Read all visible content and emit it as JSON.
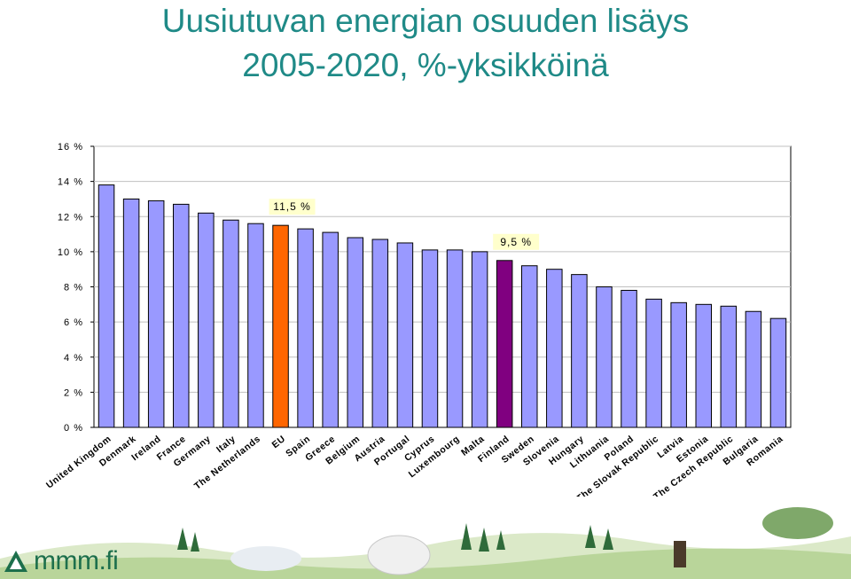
{
  "header": {
    "title_line1": "Uusiutuvan energian osuuden lisäys",
    "title_line2": "2005-2020, %-yksikköinä"
  },
  "colors": {
    "title": "#1f8a87",
    "bar_default": "#9999ff",
    "bar_eu": "#ff6600",
    "bar_finland": "#800080",
    "grid": "#c0c0c0",
    "axis": "#000000",
    "annotation_bg": "#ffffcc",
    "logo_green": "#1d6f4c"
  },
  "chart_data": {
    "type": "bar",
    "categories": [
      "United Kingdom",
      "Denmark",
      "Ireland",
      "France",
      "Germany",
      "Italy",
      "The Netherlands",
      "EU",
      "Spain",
      "Greece",
      "Belgium",
      "Austria",
      "Portugal",
      "Cyprus",
      "Luxembourg",
      "Malta",
      "Finland",
      "Sweden",
      "Slovenia",
      "Hungary",
      "Lithuania",
      "Poland",
      "The Slovak Republic",
      "Latvia",
      "Estonia",
      "The Czech Republic",
      "Bulgaria",
      "Romania"
    ],
    "values": [
      13.8,
      13.0,
      12.9,
      12.7,
      12.2,
      11.8,
      11.6,
      11.5,
      11.3,
      11.1,
      10.8,
      10.7,
      10.5,
      10.1,
      10.1,
      10.0,
      9.5,
      9.2,
      9.0,
      8.7,
      8.0,
      7.8,
      7.3,
      7.1,
      7.0,
      6.9,
      6.6,
      6.2
    ],
    "highlight": {
      "EU": "bar_eu",
      "Finland": "bar_finland"
    },
    "ylim": [
      0,
      16
    ],
    "yticks": [
      0,
      2,
      4,
      6,
      8,
      10,
      12,
      14,
      16
    ],
    "ytick_labels": [
      "0 %",
      "2 %",
      "4 %",
      "6 %",
      "8 %",
      "10 %",
      "12 %",
      "14 %",
      "16 %"
    ],
    "grid": true,
    "annotations": [
      {
        "target": "EU",
        "text": "11,5 %"
      },
      {
        "target": "Finland",
        "text": "9,5 %"
      }
    ]
  },
  "footer": {
    "logo_text": "mmm.fi",
    "logo_icon": "leaf-triangle-icon",
    "illustration": "nature-illustration"
  }
}
